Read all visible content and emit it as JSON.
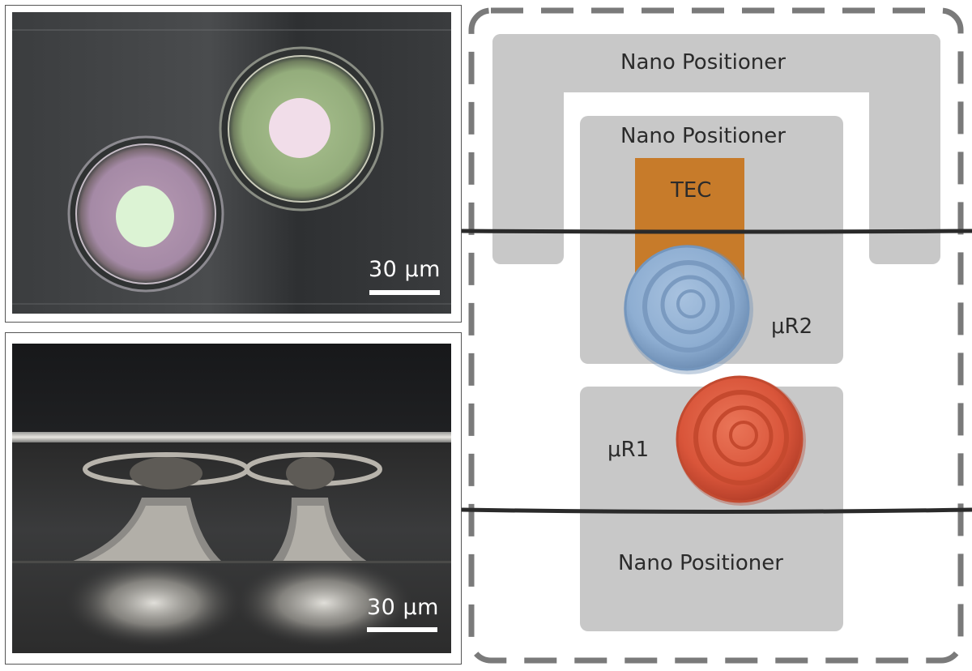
{
  "micrograph_top": {
    "scale_label": "30 μm"
  },
  "micrograph_side": {
    "scale_label": "30 μm"
  },
  "schematic": {
    "outer_positioner_label": "Nano Positioner",
    "middle_positioner_label": "Nano Positioner",
    "bottom_positioner_label": "Nano Positioner",
    "tec_label": "TEC",
    "resonator2_label": "μR2",
    "resonator1_label": "μR1",
    "colors": {
      "positioner": "#c8c8c8",
      "tec": "#c77b2a",
      "resonator2": "#8fb0d3",
      "resonator1": "#d9553a",
      "border_dash": "#7a7a7a"
    }
  }
}
